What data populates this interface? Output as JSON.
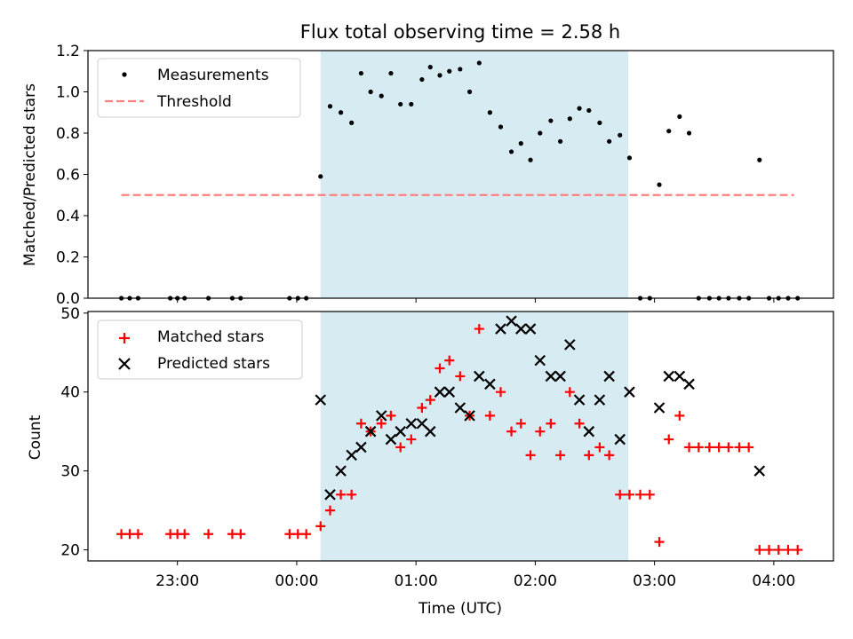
{
  "title": "Flux total observing time = 2.58 h",
  "xlabel": "Time (UTC)",
  "x_tick_labels": [
    "23:00",
    "00:00",
    "01:00",
    "02:00",
    "03:00",
    "04:00"
  ],
  "x_tick_hours": [
    -1,
    0,
    1,
    2,
    3,
    4
  ],
  "x_range_hours": [
    -1.75,
    4.5
  ],
  "observing_window_hours": [
    0.2,
    2.78
  ],
  "colors": {
    "window": "#add8e6",
    "measurements": "#000000",
    "threshold": "#ff7f7f",
    "matched": "#ff0000",
    "predicted": "#000000"
  },
  "chart_data": [
    {
      "type": "scatter",
      "ylabel": "Matched/Predicted stars",
      "ylim": [
        0,
        1.2
      ],
      "yticks": [
        0.0,
        0.2,
        0.4,
        0.6,
        0.8,
        1.0,
        1.2
      ],
      "ytick_labels": [
        "0.0",
        "0.2",
        "0.4",
        "0.6",
        "0.8",
        "1.0",
        "1.2"
      ],
      "legend": {
        "placement": "upper left",
        "entries": [
          "Measurements",
          "Threshold"
        ]
      },
      "threshold": {
        "name": "Threshold",
        "value": 0.5,
        "x_from": -1.47,
        "x_to": 4.17
      },
      "series": [
        {
          "name": "Measurements",
          "x": [
            -1.47,
            -1.4,
            -1.33,
            -1.06,
            -1.0,
            -0.94,
            -0.74,
            -0.54,
            -0.47,
            -0.06,
            0.01,
            0.08,
            0.2,
            0.28,
            0.37,
            0.46,
            0.54,
            0.62,
            0.71,
            0.79,
            0.87,
            0.96,
            1.05,
            1.12,
            1.2,
            1.28,
            1.37,
            1.45,
            1.53,
            1.62,
            1.71,
            1.8,
            1.88,
            1.96,
            2.04,
            2.13,
            2.21,
            2.29,
            2.37,
            2.45,
            2.54,
            2.62,
            2.71,
            2.79,
            2.88,
            2.96,
            3.04,
            3.12,
            3.21,
            3.29,
            3.37,
            3.46,
            3.54,
            3.62,
            3.71,
            3.79,
            3.88,
            3.96,
            4.04,
            4.12,
            4.2
          ],
          "y": [
            0,
            0,
            0,
            0,
            0,
            0,
            0,
            0,
            0,
            0,
            0,
            0,
            0.59,
            0.93,
            0.9,
            0.85,
            1.09,
            1.0,
            0.98,
            1.09,
            0.94,
            0.94,
            1.06,
            1.12,
            1.08,
            1.1,
            1.11,
            1.0,
            1.14,
            0.9,
            0.83,
            0.71,
            0.75,
            0.67,
            0.8,
            0.86,
            0.76,
            0.87,
            0.92,
            0.91,
            0.85,
            0.76,
            0.79,
            0.68,
            0,
            0,
            0.55,
            0.81,
            0.88,
            0.8,
            0,
            0,
            0,
            0,
            0,
            0,
            0.67,
            0,
            0,
            0,
            0
          ]
        }
      ]
    },
    {
      "type": "scatter",
      "ylabel": "Count",
      "ylim": [
        18.6,
        50.2
      ],
      "yticks": [
        20,
        30,
        40,
        50
      ],
      "ytick_labels": [
        "20",
        "30",
        "40",
        "50"
      ],
      "legend": {
        "placement": "upper left",
        "entries": [
          "Matched stars",
          "Predicted stars"
        ]
      },
      "series": [
        {
          "name": "Matched stars",
          "marker": "plus",
          "x": [
            -1.47,
            -1.4,
            -1.33,
            -1.06,
            -1.0,
            -0.94,
            -0.74,
            -0.54,
            -0.47,
            -0.06,
            0.01,
            0.08,
            0.2,
            0.28,
            0.37,
            0.46,
            0.54,
            0.62,
            0.71,
            0.79,
            0.87,
            0.96,
            1.05,
            1.12,
            1.2,
            1.28,
            1.37,
            1.45,
            1.53,
            1.62,
            1.71,
            1.8,
            1.88,
            1.96,
            2.04,
            2.13,
            2.21,
            2.29,
            2.37,
            2.45,
            2.54,
            2.62,
            2.71,
            2.79,
            2.88,
            2.96,
            3.04,
            3.12,
            3.21,
            3.29,
            3.37,
            3.46,
            3.54,
            3.62,
            3.71,
            3.79,
            3.88,
            3.96,
            4.04,
            4.12,
            4.2
          ],
          "y": [
            22,
            22,
            22,
            22,
            22,
            22,
            22,
            22,
            22,
            22,
            22,
            22,
            23,
            25,
            27,
            27,
            36,
            35,
            36,
            37,
            33,
            34,
            38,
            39,
            43,
            44,
            42,
            37,
            48,
            37,
            40,
            35,
            36,
            32,
            35,
            36,
            32,
            40,
            36,
            32,
            33,
            32,
            27,
            27,
            27,
            27,
            21,
            34,
            37,
            33,
            33,
            33,
            33,
            33,
            33,
            33,
            20,
            20,
            20,
            20,
            20
          ]
        },
        {
          "name": "Predicted stars",
          "marker": "x",
          "x": [
            0.2,
            0.28,
            0.37,
            0.46,
            0.54,
            0.62,
            0.71,
            0.79,
            0.87,
            0.96,
            1.05,
            1.12,
            1.2,
            1.28,
            1.37,
            1.45,
            1.53,
            1.62,
            1.71,
            1.8,
            1.88,
            1.96,
            2.04,
            2.13,
            2.21,
            2.29,
            2.37,
            2.45,
            2.54,
            2.62,
            2.71,
            2.79,
            3.04,
            3.12,
            3.21,
            3.29,
            3.88
          ],
          "y": [
            39,
            27,
            30,
            32,
            33,
            35,
            37,
            34,
            35,
            36,
            36,
            35,
            40,
            40,
            38,
            37,
            42,
            41,
            48,
            49,
            48,
            48,
            44,
            42,
            42,
            46,
            39,
            35,
            39,
            42,
            34,
            40,
            38,
            42,
            42,
            41,
            30
          ]
        }
      ]
    }
  ]
}
